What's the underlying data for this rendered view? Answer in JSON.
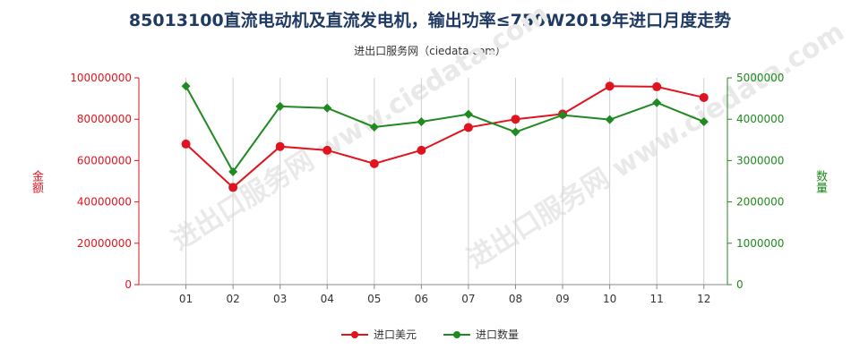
{
  "title": "85013100直流电动机及直流发电机，输出功率≤750W2019年进口月度走势",
  "subtitle": "进出口服务网（ciedata.com）",
  "watermark": "进出口服务网 www.ciedata.com",
  "chart_data": {
    "type": "line",
    "categories": [
      "01",
      "02",
      "03",
      "04",
      "05",
      "06",
      "07",
      "08",
      "09",
      "10",
      "11",
      "12"
    ],
    "series": [
      {
        "name": "进口美元",
        "axis": "left",
        "color": "#e0141e",
        "values": [
          68000000,
          47000000,
          66800000,
          65000000,
          58500000,
          65000000,
          76000000,
          80000000,
          82500000,
          96000000,
          95700000,
          90500000
        ]
      },
      {
        "name": "进口数量",
        "axis": "right",
        "color": "#1f8a1f",
        "values": [
          4800000,
          2730000,
          4310000,
          4270000,
          3810000,
          3940000,
          4120000,
          3690000,
          4100000,
          3990000,
          4400000,
          3940000
        ]
      }
    ],
    "ylabel_left": "金额",
    "ylabel_right": "数量",
    "ylim_left": [
      0,
      100000000
    ],
    "ylim_right": [
      0,
      5000000
    ],
    "yticks_left": [
      "0",
      "20000000",
      "40000000",
      "60000000",
      "80000000",
      "100000000"
    ],
    "yticks_right": [
      "0",
      "1000000",
      "2000000",
      "3000000",
      "4000000",
      "5000000"
    ],
    "grid": "vertical",
    "legend_position": "bottom-center"
  }
}
